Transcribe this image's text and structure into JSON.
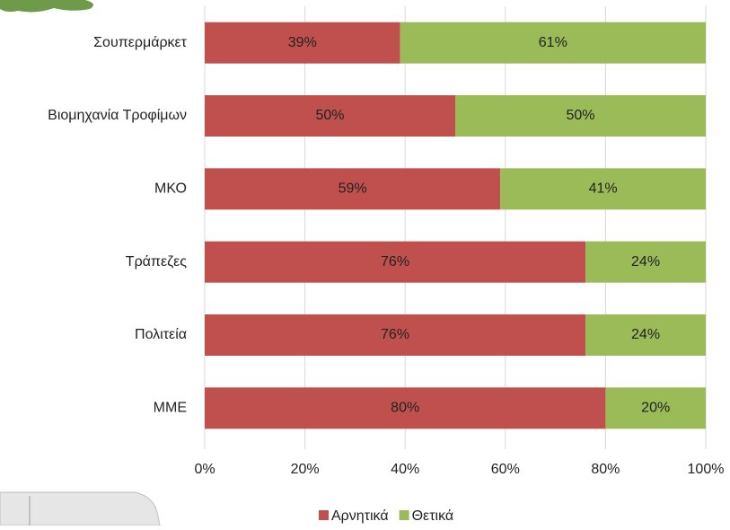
{
  "chart_data": {
    "type": "bar",
    "orientation": "horizontal",
    "stacked": true,
    "categories": [
      "Σουπερμάρκετ",
      "Βιομηχανία Τροφίμων",
      "ΜΚΟ",
      "Τράπεζες",
      "Πολιτεία",
      "ΜΜΕ"
    ],
    "series": [
      {
        "name": "Αρνητικά",
        "color": "#c0504d",
        "values": [
          39,
          50,
          59,
          76,
          76,
          80
        ],
        "value_labels": [
          "39%",
          "50%",
          "59%",
          "76%",
          "76%",
          "80%"
        ]
      },
      {
        "name": "Θετικά",
        "color": "#9bbb59",
        "values": [
          61,
          50,
          41,
          24,
          24,
          20
        ],
        "value_labels": [
          "61%",
          "50%",
          "41%",
          "24%",
          "24%",
          "20%"
        ]
      }
    ],
    "xlim": [
      0,
      100
    ],
    "xticks": [
      {
        "value": 0,
        "label": "0%"
      },
      {
        "value": 20,
        "label": "20%"
      },
      {
        "value": 40,
        "label": "40%"
      },
      {
        "value": 60,
        "label": "60%"
      },
      {
        "value": 80,
        "label": "80%"
      },
      {
        "value": 100,
        "label": "100%"
      }
    ],
    "grid": true,
    "legend": "bottom"
  }
}
